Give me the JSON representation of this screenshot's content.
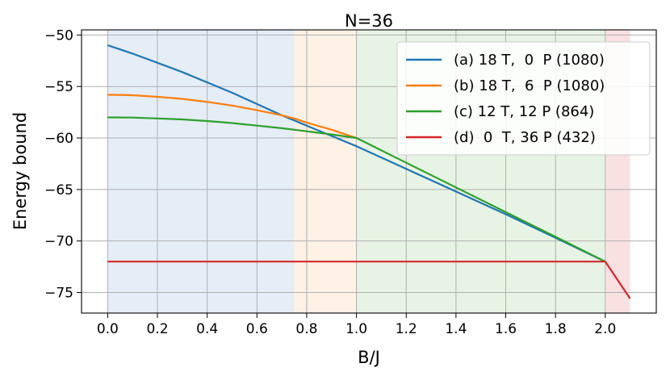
{
  "chart_data": {
    "type": "line",
    "title": "N=36",
    "xlabel": "B/J",
    "ylabel": "Energy bound",
    "xlim": [
      -0.105,
      2.205
    ],
    "ylim": [
      -77,
      -49.5
    ],
    "xticks": [
      0.0,
      0.2,
      0.4,
      0.6,
      0.8,
      1.0,
      1.2,
      1.4,
      1.6,
      1.8,
      2.0
    ],
    "xtick_labels": [
      "0.0",
      "0.2",
      "0.4",
      "0.6",
      "0.8",
      "1.0",
      "1.2",
      "1.4",
      "1.6",
      "1.8",
      "2.0"
    ],
    "yticks": [
      -50,
      -55,
      -60,
      -65,
      -70,
      -75
    ],
    "ytick_labels": [
      "−50",
      "−55",
      "−60",
      "−65",
      "−70",
      "−75"
    ],
    "grid": true,
    "legend_position": "top-right",
    "regions": [
      {
        "x0": 0.0,
        "x1": 0.75,
        "color": "#e5edf7"
      },
      {
        "x0": 0.75,
        "x1": 1.0,
        "color": "#fef1e6"
      },
      {
        "x0": 1.0,
        "x1": 2.0,
        "color": "#e7f3e4"
      },
      {
        "x0": 2.0,
        "x1": 2.1,
        "color": "#f9e1e2"
      }
    ],
    "series": [
      {
        "name": "(a) 18 T,  0  P (1080)",
        "color": "#1f77b4",
        "x": [
          0.0,
          0.1,
          0.2,
          0.3,
          0.4,
          0.5,
          0.6,
          0.7,
          0.8,
          0.9,
          1.0,
          1.2,
          1.4,
          1.6,
          1.8,
          2.0
        ],
        "y": [
          -51.0,
          -51.8,
          -52.7,
          -53.6,
          -54.6,
          -55.6,
          -56.7,
          -57.8,
          -58.8,
          -59.8,
          -60.8,
          -63.0,
          -65.2,
          -67.4,
          -69.7,
          -72.0
        ]
      },
      {
        "name": "(b) 18 T,  6  P (1080)",
        "color": "#ff7f0e",
        "x": [
          0.0,
          0.1,
          0.2,
          0.3,
          0.4,
          0.5,
          0.6,
          0.7,
          0.75,
          0.8,
          0.9,
          1.0
        ],
        "y": [
          -55.8,
          -55.85,
          -56.0,
          -56.2,
          -56.5,
          -56.85,
          -57.3,
          -57.8,
          -58.1,
          -58.5,
          -59.2,
          -60.0
        ]
      },
      {
        "name": "(c) 12 T, 12 P (864)",
        "color": "#2ca02c",
        "x": [
          0.0,
          0.1,
          0.2,
          0.3,
          0.4,
          0.5,
          0.6,
          0.7,
          0.8,
          0.9,
          1.0,
          1.2,
          1.4,
          1.6,
          1.8,
          2.0
        ],
        "y": [
          -58.0,
          -58.02,
          -58.1,
          -58.2,
          -58.35,
          -58.55,
          -58.8,
          -59.05,
          -59.35,
          -59.65,
          -60.0,
          -62.4,
          -64.8,
          -67.2,
          -69.6,
          -72.0
        ]
      },
      {
        "name": "(d)  0  T, 36 P (432)",
        "color": "#d62728",
        "x": [
          0.0,
          2.0,
          2.1
        ],
        "y": [
          -72.0,
          -72.0,
          -75.6
        ]
      }
    ]
  }
}
